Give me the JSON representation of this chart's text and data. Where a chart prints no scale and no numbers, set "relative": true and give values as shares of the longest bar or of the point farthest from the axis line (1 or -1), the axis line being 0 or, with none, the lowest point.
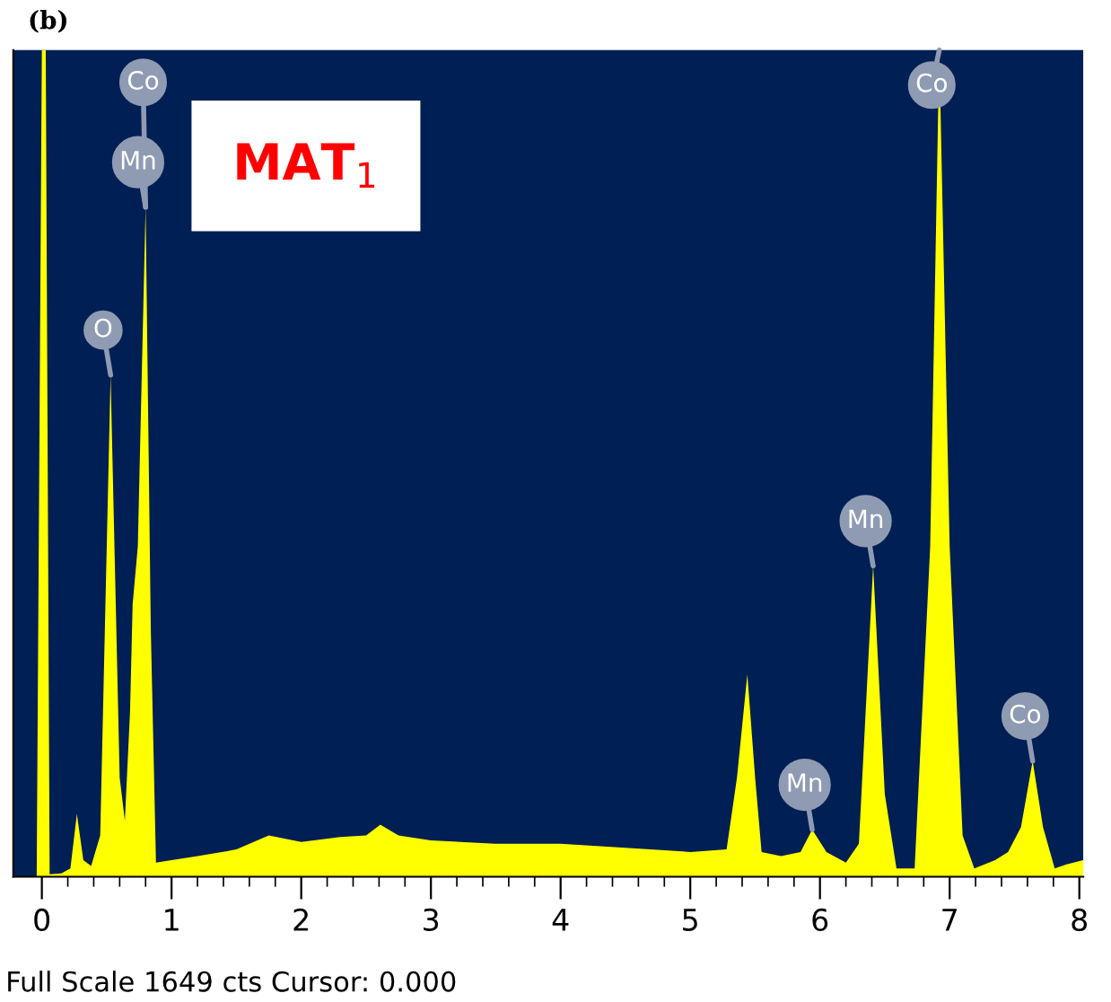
{
  "chart_data": {
    "type": "area",
    "title": "(b)",
    "relative": true,
    "x": [
      -0.04,
      0.0,
      0.03,
      0.06,
      0.15,
      0.22,
      0.27,
      0.32,
      0.38,
      0.45,
      0.53,
      0.6,
      0.64,
      0.68,
      0.7,
      0.74,
      0.8,
      0.84,
      0.88,
      1.0,
      1.2,
      1.5,
      1.75,
      2.0,
      2.3,
      2.5,
      2.61,
      2.75,
      3.0,
      3.5,
      4.0,
      4.5,
      5.0,
      5.28,
      5.36,
      5.44,
      5.5,
      5.55,
      5.7,
      5.85,
      5.94,
      6.05,
      6.2,
      6.3,
      6.41,
      6.5,
      6.59,
      6.73,
      6.85,
      6.92,
      7.0,
      7.1,
      7.19,
      7.35,
      7.45,
      7.55,
      7.64,
      7.72,
      7.81,
      7.9,
      8.03
    ],
    "series": [
      {
        "color": "#ffff00",
        "values": [
          0,
          1,
          1,
          0.003,
          0.004,
          0.01,
          0.076,
          0.02,
          0.013,
          0.05,
          0.607,
          0.12,
          0.068,
          0.2,
          0.33,
          0.4,
          0.81,
          0.3,
          0.017,
          0.02,
          0.025,
          0.033,
          0.05,
          0.042,
          0.048,
          0.05,
          0.063,
          0.05,
          0.044,
          0.04,
          0.04,
          0.035,
          0.03,
          0.033,
          0.12,
          0.245,
          0.12,
          0.03,
          0.025,
          0.03,
          0.057,
          0.03,
          0.017,
          0.04,
          0.376,
          0.1,
          0.01,
          0.01,
          0.4,
          1.0,
          0.4,
          0.05,
          0.01,
          0.02,
          0.03,
          0.06,
          0.14,
          0.06,
          0.01,
          0.015,
          0.02
        ]
      }
    ],
    "xlim": [
      -0.22,
      8.03
    ],
    "xticks": [
      0,
      {
        "value": 0.2,
        "label": null
      },
      {
        "value": 0.4,
        "label": null
      },
      {
        "value": 0.6,
        "label": null
      },
      {
        "value": 0.8,
        "label": null
      },
      1,
      {
        "value": 1.2,
        "label": null
      },
      {
        "value": 1.4,
        "label": null
      },
      {
        "value": 1.6,
        "label": null
      },
      {
        "value": 1.8,
        "label": null
      },
      2,
      {
        "value": 2.2,
        "label": null
      },
      {
        "value": 2.4,
        "label": null
      },
      {
        "value": 2.6,
        "label": null
      },
      {
        "value": 2.8,
        "label": null
      },
      3,
      {
        "value": 3.2,
        "label": null
      },
      {
        "value": 3.4,
        "label": null
      },
      {
        "value": 3.6,
        "label": null
      },
      {
        "value": 3.8,
        "label": null
      },
      4,
      {
        "value": 4.2,
        "label": null
      },
      {
        "value": 4.4,
        "label": null
      },
      {
        "value": 4.6,
        "label": null
      },
      {
        "value": 4.8,
        "label": null
      },
      5,
      {
        "value": 5.2,
        "label": null
      },
      {
        "value": 5.4,
        "label": null
      },
      {
        "value": 5.6,
        "label": null
      },
      {
        "value": 5.8,
        "label": null
      },
      6,
      {
        "value": 6.2,
        "label": null
      },
      {
        "value": 6.4,
        "label": null
      },
      {
        "value": 6.6,
        "label": null
      },
      {
        "value": 6.8,
        "label": null
      },
      7,
      {
        "value": 7.2,
        "label": null
      },
      {
        "value": 7.4,
        "label": null
      },
      {
        "value": 7.6,
        "label": null
      },
      {
        "value": 7.8,
        "label": null
      },
      8
    ],
    "grid": false,
    "annotations": [
      {
        "text": "O",
        "x": 0.53,
        "y": 0.607
      },
      {
        "text": "Mn",
        "x": 0.8,
        "y": 0.81
      },
      {
        "text": "Co",
        "x": 0.8,
        "y": 0.81
      },
      {
        "text": "Mn",
        "x": 5.94,
        "y": 0.057
      },
      {
        "text": "Mn",
        "x": 6.41,
        "y": 0.376
      },
      {
        "text": "Co",
        "x": 6.92,
        "y": 1.0
      },
      {
        "text": "Co",
        "x": 7.64,
        "y": 0.14
      },
      "MAT$_{1}$",
      "Full Scale 1649 cts Cursor: 0.000"
    ]
  }
}
